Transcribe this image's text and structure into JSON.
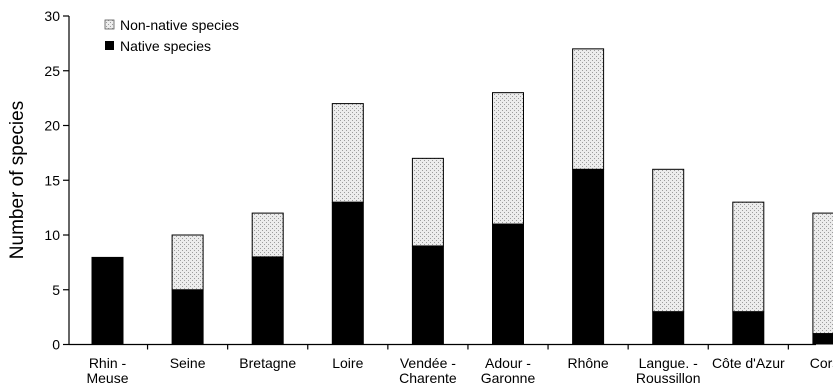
{
  "chart_data": {
    "type": "bar",
    "stacked": true,
    "ylabel": "Number of species",
    "xlabel": "",
    "ylim": [
      0,
      30
    ],
    "yticks": [
      0,
      5,
      10,
      15,
      20,
      25,
      30
    ],
    "grid": false,
    "legend_position": "top-left",
    "categories": [
      [
        "Rhin -",
        "Meuse"
      ],
      [
        "Seine"
      ],
      [
        "Bretagne"
      ],
      [
        "Loire"
      ],
      [
        "Vendée -",
        "Charente"
      ],
      [
        "Adour -",
        "Garonne"
      ],
      [
        "Rhône"
      ],
      [
        "Langue. -",
        "Roussillon"
      ],
      [
        "Côte d'Azur"
      ],
      [
        "Corse"
      ]
    ],
    "series": [
      {
        "name": "Native species",
        "color": "#000000",
        "values": [
          8,
          5,
          8,
          13,
          9,
          11,
          16,
          3,
          3,
          1
        ]
      },
      {
        "name": "Non-native species",
        "color": "#e2e2e2",
        "values": [
          0,
          5,
          4,
          9,
          8,
          12,
          11,
          13,
          10,
          11
        ]
      }
    ],
    "legend_order": [
      "Non-native species",
      "Native species"
    ]
  }
}
